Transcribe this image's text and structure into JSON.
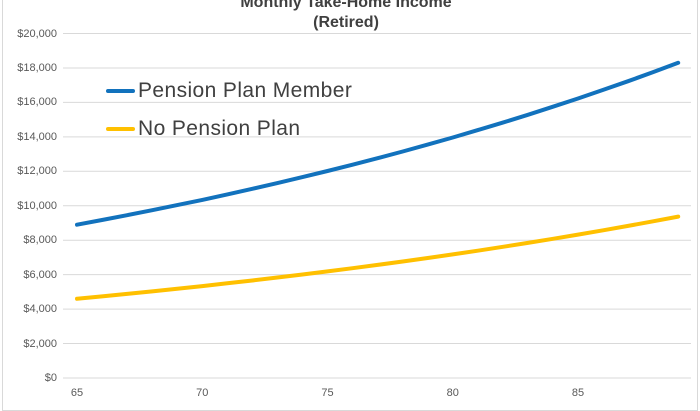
{
  "title": {
    "line1": "Monthly Take-Home Income",
    "line2": "(Retired)"
  },
  "colors": {
    "series_blue": "#1272BD",
    "series_yellow": "#FFC000",
    "gridline": "#D9D9D9",
    "axis_text": "#595959",
    "title_text": "#404040",
    "chart_border": "#D9D9D9"
  },
  "chart_data": {
    "type": "line",
    "title": "Monthly Take-Home Income (Retired)",
    "xlabel": "",
    "ylabel": "",
    "xlim": [
      65,
      89
    ],
    "ylim": [
      0,
      20000
    ],
    "grid": "horizontal",
    "legend_position": "inside-top-left",
    "x": [
      65,
      66,
      67,
      68,
      69,
      70,
      71,
      72,
      73,
      74,
      75,
      76,
      77,
      78,
      79,
      80,
      81,
      82,
      83,
      84,
      85,
      86,
      87,
      88,
      89
    ],
    "x_ticks": [
      65,
      70,
      75,
      80,
      85
    ],
    "y_ticks": {
      "labels": [
        "$0",
        "$2,000",
        "$4,000",
        "$6,000",
        "$8,000",
        "$10,000",
        "$12,000",
        "$14,000",
        "$16,000",
        "$18,000",
        "$20,000"
      ],
      "values": [
        0,
        2000,
        4000,
        6000,
        8000,
        10000,
        12000,
        14000,
        16000,
        18000,
        20000
      ]
    },
    "series": [
      {
        "name": "Pension Plan Member",
        "color": "#1272BD",
        "values": [
          8900,
          9171,
          9451,
          9739,
          10036,
          10342,
          10657,
          10982,
          11317,
          11662,
          12018,
          12384,
          12762,
          13151,
          13552,
          13965,
          14391,
          14830,
          15282,
          15748,
          16228,
          16723,
          17233,
          17758,
          18300
        ]
      },
      {
        "name": "No Pension Plan",
        "color": "#FFC000",
        "values": [
          4600,
          4738,
          4881,
          5028,
          5179,
          5335,
          5496,
          5661,
          5832,
          6007,
          6188,
          6374,
          6566,
          6764,
          6968,
          7177,
          7393,
          7616,
          7845,
          8081,
          8325,
          8575,
          8833,
          9099,
          9373
        ]
      }
    ]
  }
}
